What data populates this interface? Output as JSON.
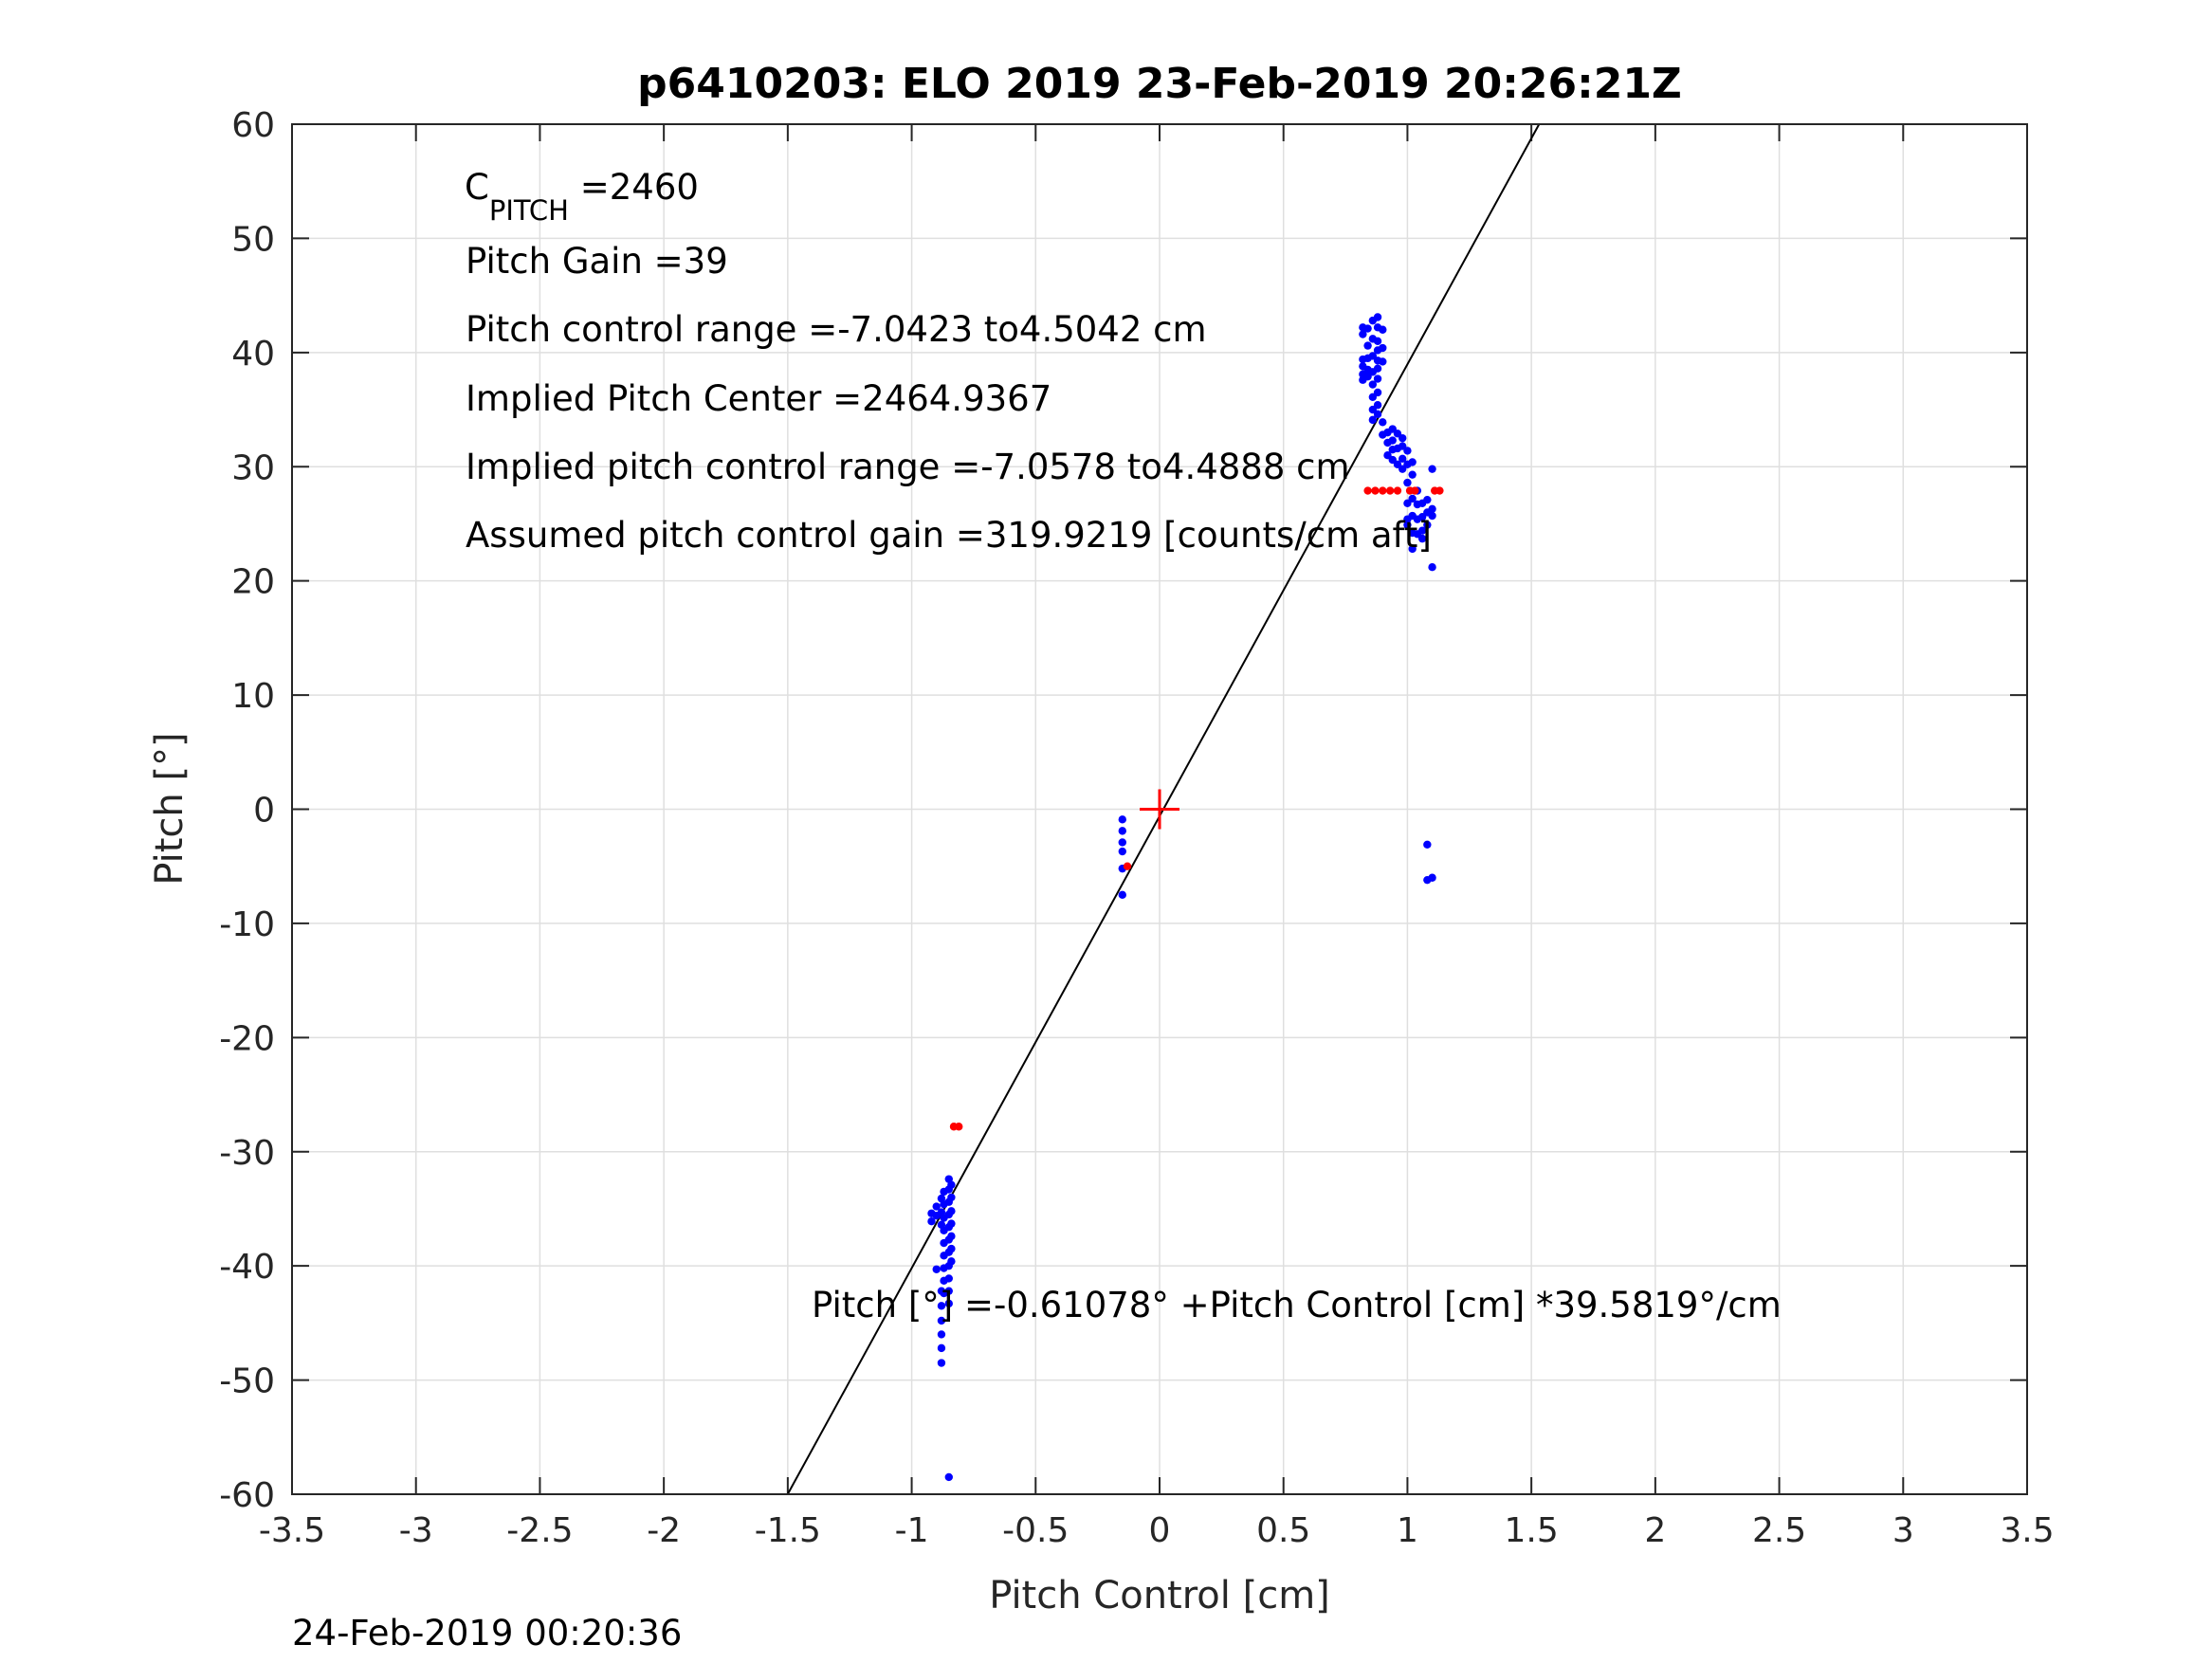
{
  "chart_data": {
    "type": "scatter",
    "title": "p6410203: ELO 2019 23-Feb-2019 20:26:21Z",
    "xlabel": "Pitch Control [cm]",
    "ylabel": "Pitch [°]",
    "xlim": [
      -3.5,
      3.5
    ],
    "ylim": [
      -60,
      60
    ],
    "xticks": [
      -3.5,
      -3,
      -2.5,
      -2,
      -1.5,
      -1,
      -0.5,
      0,
      0.5,
      1,
      1.5,
      2,
      2.5,
      3,
      3.5
    ],
    "xtick_labels": [
      "-3.5",
      "-3",
      "-2.5",
      "-2",
      "-1.5",
      "-1",
      "-0.5",
      "0",
      "0.5",
      "1",
      "1.5",
      "2",
      "2.5",
      "3",
      "3.5"
    ],
    "yticks": [
      -60,
      -50,
      -40,
      -30,
      -20,
      -10,
      0,
      10,
      20,
      30,
      40,
      50,
      60
    ],
    "ytick_labels": [
      "-60",
      "-50",
      "-40",
      "-30",
      "-20",
      "-10",
      "0",
      "10",
      "20",
      "30",
      "40",
      "50",
      "60"
    ],
    "grid": true,
    "annotations": {
      "c_pitch_main": "C",
      "c_pitch_sub": "PITCH",
      "c_pitch_value": " =2460",
      "pitch_gain": "Pitch Gain =39",
      "pitch_control_range": "Pitch control range =-7.0423 to4.5042 cm",
      "implied_pitch_center": "Implied Pitch Center =2464.9367",
      "implied_control_range": "Implied pitch control range =-7.0578 to4.4888 cm",
      "assumed_gain": "Assumed pitch control gain =319.9219 [counts/cm aft]",
      "fit_equation": "Pitch [°] =-0.61078° +Pitch Control [cm] *39.5819°/cm"
    },
    "fit_line": {
      "intercept": -0.61078,
      "slope": 39.5819,
      "color": "#000000"
    },
    "center_marker": {
      "x": 0,
      "y": 0,
      "color": "#ff0000"
    },
    "series": [
      {
        "color": "#0000ff",
        "points": [
          [
            0.82,
            42.2
          ],
          [
            0.82,
            41.6
          ],
          [
            0.82,
            39.4
          ],
          [
            0.82,
            38.8
          ],
          [
            0.82,
            38.1
          ],
          [
            0.82,
            37.6
          ],
          [
            0.84,
            42.1
          ],
          [
            0.84,
            40.6
          ],
          [
            0.84,
            39.5
          ],
          [
            0.84,
            38.5
          ],
          [
            0.84,
            37.9
          ],
          [
            0.86,
            42.8
          ],
          [
            0.86,
            41.2
          ],
          [
            0.86,
            39.7
          ],
          [
            0.86,
            38.3
          ],
          [
            0.86,
            37.2
          ],
          [
            0.86,
            36.1
          ],
          [
            0.86,
            35.0
          ],
          [
            0.86,
            34.1
          ],
          [
            0.88,
            43.1
          ],
          [
            0.88,
            42.2
          ],
          [
            0.88,
            41.0
          ],
          [
            0.88,
            40.2
          ],
          [
            0.88,
            39.3
          ],
          [
            0.88,
            38.6
          ],
          [
            0.88,
            37.7
          ],
          [
            0.88,
            36.5
          ],
          [
            0.88,
            35.4
          ],
          [
            0.88,
            34.6
          ],
          [
            0.9,
            42.0
          ],
          [
            0.9,
            40.4
          ],
          [
            0.9,
            39.2
          ],
          [
            0.9,
            33.9
          ],
          [
            0.9,
            32.8
          ],
          [
            0.92,
            33.0
          ],
          [
            0.92,
            32.1
          ],
          [
            0.92,
            31.0
          ],
          [
            0.94,
            33.3
          ],
          [
            0.94,
            32.3
          ],
          [
            0.94,
            31.5
          ],
          [
            0.94,
            30.6
          ],
          [
            0.96,
            32.9
          ],
          [
            0.96,
            31.6
          ],
          [
            0.96,
            30.2
          ],
          [
            0.98,
            32.5
          ],
          [
            0.98,
            31.8
          ],
          [
            0.98,
            30.7
          ],
          [
            0.98,
            29.8
          ],
          [
            1.0,
            31.4
          ],
          [
            1.0,
            30.2
          ],
          [
            1.0,
            28.6
          ],
          [
            1.0,
            26.8
          ],
          [
            1.0,
            25.4
          ],
          [
            1.0,
            24.9
          ],
          [
            1.02,
            30.4
          ],
          [
            1.02,
            29.3
          ],
          [
            1.02,
            27.2
          ],
          [
            1.02,
            25.7
          ],
          [
            1.02,
            24.2
          ],
          [
            1.02,
            22.8
          ],
          [
            1.04,
            27.9
          ],
          [
            1.04,
            26.7
          ],
          [
            1.04,
            25.4
          ],
          [
            1.04,
            24.1
          ],
          [
            1.06,
            26.8
          ],
          [
            1.06,
            25.6
          ],
          [
            1.06,
            24.4
          ],
          [
            1.06,
            23.7
          ],
          [
            1.08,
            27.1
          ],
          [
            1.08,
            26.0
          ],
          [
            1.08,
            24.9
          ],
          [
            1.08,
            -3.1
          ],
          [
            1.08,
            -6.2
          ],
          [
            1.1,
            29.8
          ],
          [
            1.1,
            26.3
          ],
          [
            1.1,
            25.7
          ],
          [
            1.1,
            21.2
          ],
          [
            1.1,
            -6.0
          ],
          [
            -0.15,
            -0.9
          ],
          [
            -0.15,
            -1.9
          ],
          [
            -0.15,
            -2.9
          ],
          [
            -0.15,
            -3.7
          ],
          [
            -0.15,
            -5.2
          ],
          [
            -0.15,
            -7.5
          ],
          [
            -0.92,
            -35.4
          ],
          [
            -0.92,
            -36.1
          ],
          [
            -0.9,
            -34.8
          ],
          [
            -0.9,
            -35.6
          ],
          [
            -0.9,
            -40.3
          ],
          [
            -0.88,
            -34.1
          ],
          [
            -0.88,
            -35.3
          ],
          [
            -0.88,
            -36.4
          ],
          [
            -0.88,
            -42.2
          ],
          [
            -0.88,
            -43.5
          ],
          [
            -0.88,
            -44.8
          ],
          [
            -0.88,
            -46.0
          ],
          [
            -0.88,
            -47.2
          ],
          [
            -0.88,
            -48.5
          ],
          [
            -0.87,
            -33.5
          ],
          [
            -0.87,
            -34.6
          ],
          [
            -0.87,
            -35.8
          ],
          [
            -0.87,
            -36.9
          ],
          [
            -0.87,
            -38.0
          ],
          [
            -0.87,
            -39.1
          ],
          [
            -0.87,
            -40.2
          ],
          [
            -0.87,
            -41.3
          ],
          [
            -0.87,
            -42.4
          ],
          [
            -0.85,
            -32.4
          ],
          [
            -0.85,
            -33.3
          ],
          [
            -0.85,
            -34.4
          ],
          [
            -0.85,
            -35.5
          ],
          [
            -0.85,
            -36.6
          ],
          [
            -0.85,
            -37.7
          ],
          [
            -0.85,
            -38.8
          ],
          [
            -0.85,
            -40.0
          ],
          [
            -0.85,
            -41.1
          ],
          [
            -0.85,
            -42.2
          ],
          [
            -0.85,
            -43.3
          ],
          [
            -0.85,
            -58.5
          ],
          [
            -0.84,
            -32.9
          ],
          [
            -0.84,
            -34.0
          ],
          [
            -0.84,
            -35.2
          ],
          [
            -0.84,
            -36.3
          ],
          [
            -0.84,
            -37.4
          ],
          [
            -0.84,
            -38.5
          ],
          [
            -0.84,
            -39.6
          ]
        ]
      },
      {
        "color": "#ff0000",
        "points": [
          [
            0.84,
            27.9
          ],
          [
            0.87,
            27.9
          ],
          [
            0.9,
            27.9
          ],
          [
            0.93,
            27.9
          ],
          [
            0.96,
            27.9
          ],
          [
            1.01,
            27.9
          ],
          [
            1.03,
            27.9
          ],
          [
            1.11,
            27.9
          ],
          [
            1.13,
            27.9
          ],
          [
            -0.83,
            -27.8
          ],
          [
            -0.81,
            -27.8
          ],
          [
            -0.13,
            -5.0
          ]
        ]
      }
    ],
    "timestamp": "24-Feb-2019 00:20:36"
  }
}
